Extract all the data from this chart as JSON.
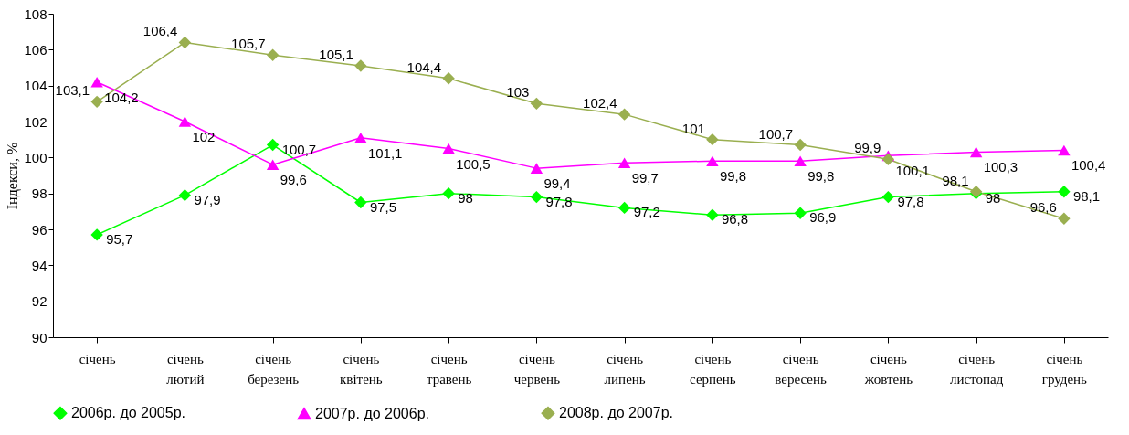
{
  "chart_data": {
    "type": "line",
    "ylabel": "Індекси, %",
    "categories": [
      "січень",
      "січень\nлютий",
      "січень\nберезень",
      "січень\nквітень",
      "січень\nтравень",
      "січень\nчервень",
      "січень\nлипень",
      "січень\nсерпень",
      "січень\nвересень",
      "січень\nжовтень",
      "січень\nлистопад",
      "січень\nгрудень"
    ],
    "ylim": [
      90,
      108
    ],
    "yticks": [
      90,
      92,
      94,
      96,
      98,
      100,
      102,
      104,
      106,
      108
    ],
    "grid": false,
    "legend": "bottom",
    "series": [
      {
        "name": "2006р. до 2005р.",
        "color": "#00ff00",
        "marker": "diamond",
        "values": [
          95.7,
          97.9,
          100.7,
          97.5,
          98,
          97.8,
          97.2,
          96.8,
          96.9,
          97.8,
          98,
          98.1
        ],
        "value_labels": [
          "95,7",
          "97,9",
          "100,7",
          "97,5",
          "98",
          "97,8",
          "97,2",
          "96,8",
          "96,9",
          "97,8",
          "98",
          "98,1"
        ]
      },
      {
        "name": "2007р. до 2006р.",
        "color": "#ff00ff",
        "marker": "triangle",
        "values": [
          104.2,
          102,
          99.6,
          101.1,
          100.5,
          99.4,
          99.7,
          99.8,
          99.8,
          100.1,
          100.3,
          100.4
        ],
        "value_labels": [
          "104,2",
          "102",
          "99,6",
          "101,1",
          "100,5",
          "99,4",
          "99,7",
          "99,8",
          "99,8",
          "100,1",
          "100,3",
          "100,4"
        ]
      },
      {
        "name": "2008р. до 2007р.",
        "color": "#9aaf50",
        "marker": "diamond",
        "values": [
          103.1,
          106.4,
          105.7,
          105.1,
          104.4,
          103,
          102.4,
          101,
          100.7,
          99.9,
          98.1,
          96.6
        ],
        "value_labels": [
          "103,1",
          "106,4",
          "105,7",
          "105,1",
          "104,4",
          "103",
          "102,4",
          "101",
          "100,7",
          "99,9",
          "98,1",
          "96,6"
        ]
      }
    ]
  }
}
